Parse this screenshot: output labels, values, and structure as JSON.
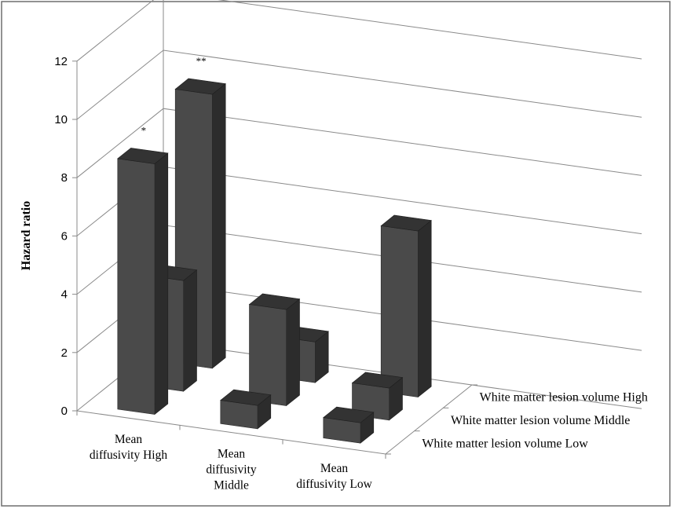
{
  "chart_data": {
    "type": "bar",
    "subtype": "3d-grouped",
    "ylabel": "Hazard ratio",
    "ylim": [
      0,
      12
    ],
    "yticks": [
      "0",
      "2",
      "4",
      "6",
      "8",
      "10",
      "12"
    ],
    "categories": [
      [
        "Mean",
        "diffusivity High"
      ],
      [
        "Mean",
        "diffusivity",
        "Middle"
      ],
      [
        "Mean",
        "diffusivity Low"
      ]
    ],
    "series": [
      {
        "name": "White matter lesion volume  Low",
        "values": [
          8.6,
          0.8,
          0.7
        ]
      },
      {
        "name": "White matter lesion volume Middle",
        "values": [
          3.8,
          3.3,
          1.1
        ]
      },
      {
        "name": "White matter lesion volume High",
        "values": [
          9.4,
          1.4,
          5.7
        ]
      }
    ],
    "annotations": [
      {
        "text": "*",
        "category": 0,
        "series": 0
      },
      {
        "text": "**",
        "category": 0,
        "series": 2
      }
    ],
    "grid": true,
    "legend": "none"
  }
}
